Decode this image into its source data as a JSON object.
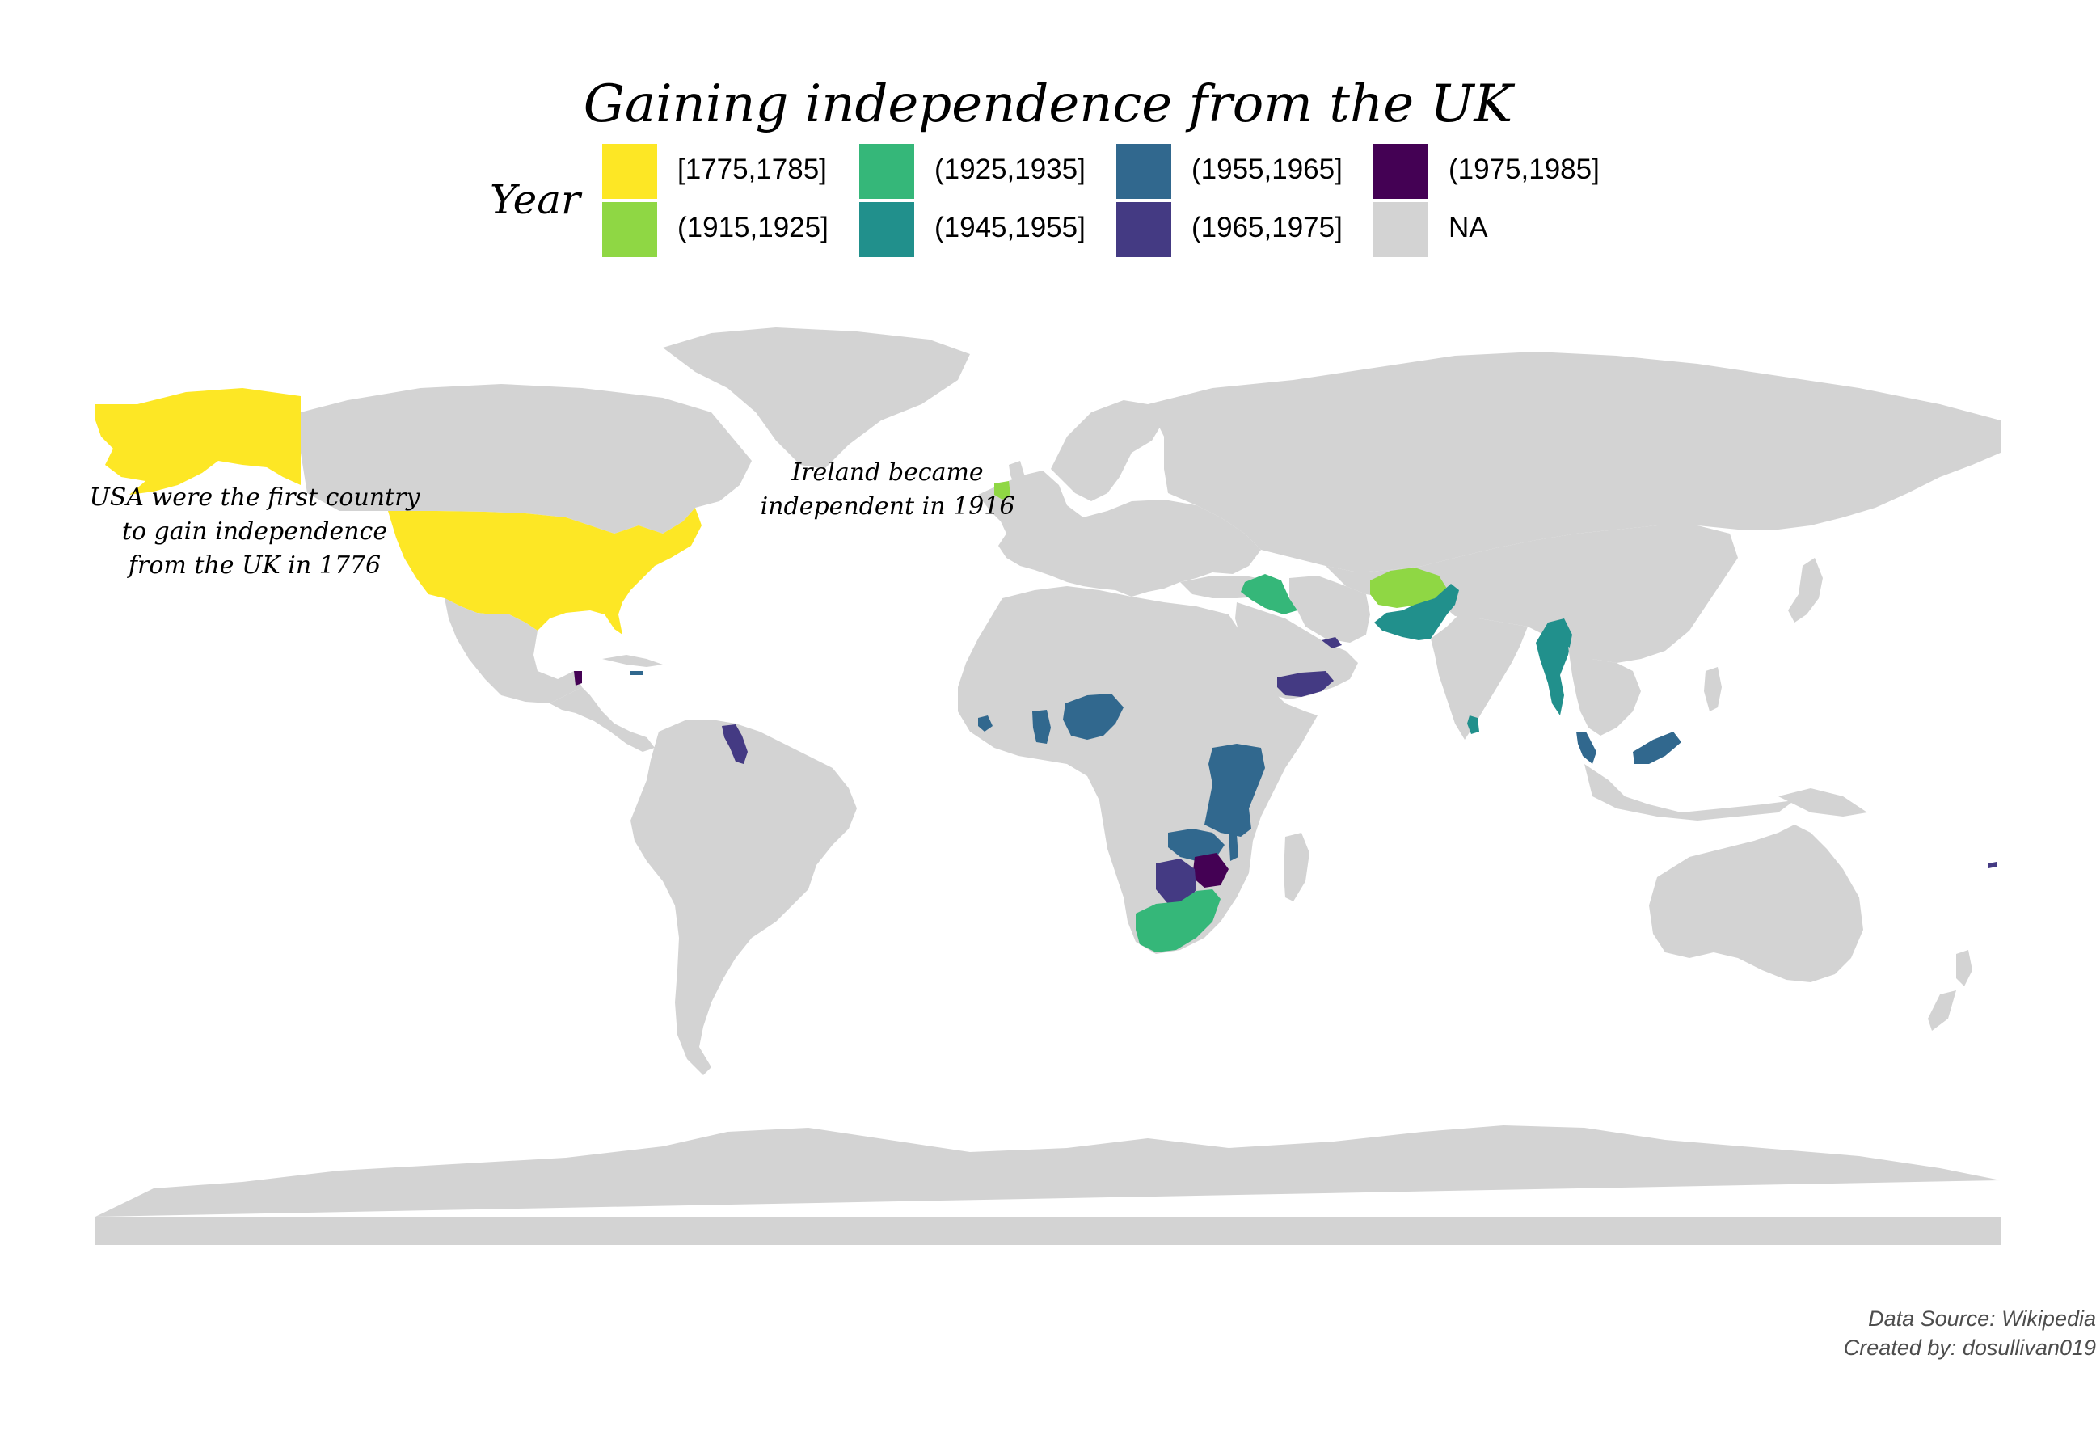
{
  "title": "Gaining independence from the UK",
  "legend": {
    "title": "Year",
    "items": [
      {
        "label": "[1775,1785]",
        "color": "#FDE725"
      },
      {
        "label": "(1915,1925]",
        "color": "#8FD744"
      },
      {
        "label": "(1925,1935]",
        "color": "#35B779"
      },
      {
        "label": "(1945,1955]",
        "color": "#21908C"
      },
      {
        "label": "(1955,1965]",
        "color": "#31688E"
      },
      {
        "label": "(1965,1975]",
        "color": "#443A83"
      },
      {
        "label": "(1975,1985]",
        "color": "#440154"
      },
      {
        "label": "NA",
        "color": "#D3D3D3"
      }
    ]
  },
  "annotations": {
    "usa": [
      "USA were the first country",
      "to gain independence",
      "from the UK in 1776"
    ],
    "ireland": [
      "Ireland became",
      "independent in 1916"
    ]
  },
  "caption": {
    "source": "Data Source: Wikipedia",
    "author": "Created by: dosullivan019"
  },
  "map_data": {
    "type": "choropleth",
    "variable": "Year of independence from the UK",
    "countries": [
      {
        "name": "United States",
        "bin": "[1775,1785]"
      },
      {
        "name": "Ireland",
        "bin": "(1915,1925]"
      },
      {
        "name": "Afghanistan",
        "bin": "(1915,1925]"
      },
      {
        "name": "Iraq",
        "bin": "(1925,1935]"
      },
      {
        "name": "South Africa",
        "bin": "(1925,1935]"
      },
      {
        "name": "Pakistan",
        "bin": "(1945,1955]"
      },
      {
        "name": "India",
        "bin": "NA"
      },
      {
        "name": "Myanmar",
        "bin": "(1945,1955]"
      },
      {
        "name": "Sri Lanka",
        "bin": "(1945,1955]"
      },
      {
        "name": "Nigeria",
        "bin": "(1955,1965]"
      },
      {
        "name": "Ghana",
        "bin": "(1955,1965]"
      },
      {
        "name": "Sierra Leone",
        "bin": "(1955,1965]"
      },
      {
        "name": "Kenya",
        "bin": "(1955,1965]"
      },
      {
        "name": "Uganda",
        "bin": "(1955,1965]"
      },
      {
        "name": "Tanzania",
        "bin": "(1955,1965]"
      },
      {
        "name": "Zambia",
        "bin": "(1955,1965]"
      },
      {
        "name": "Malawi",
        "bin": "(1955,1965]"
      },
      {
        "name": "Malaysia",
        "bin": "(1955,1965]"
      },
      {
        "name": "Botswana",
        "bin": "(1965,1975]"
      },
      {
        "name": "Guyana",
        "bin": "(1965,1975]"
      },
      {
        "name": "Yemen",
        "bin": "(1965,1975]"
      },
      {
        "name": "United Arab Emirates",
        "bin": "(1965,1975]"
      },
      {
        "name": "Zimbabwe",
        "bin": "(1975,1985]"
      },
      {
        "name": "Belize",
        "bin": "(1975,1985]"
      }
    ]
  }
}
